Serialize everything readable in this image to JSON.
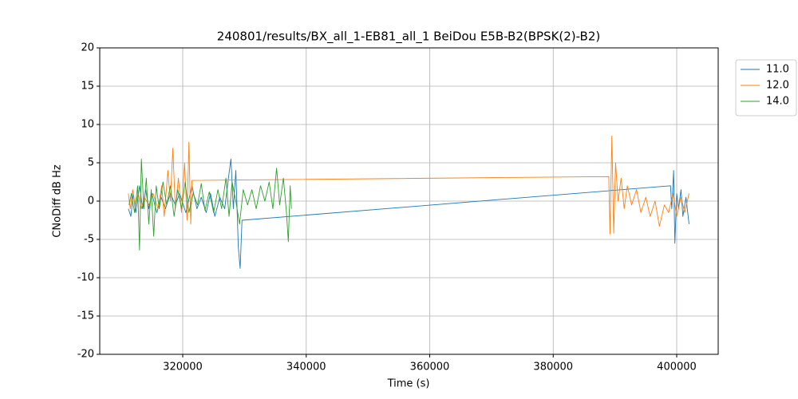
{
  "chart_data": {
    "type": "line",
    "title": "240801/results/BX_all_1-EB81_all_1 BeiDou E5B-B2(BPSK(2)-B2)",
    "x_label": "Time (s)",
    "y_label": "CNoDiff dB Hz",
    "xlim": [
      306560,
      406720
    ],
    "ylim": [
      -20,
      20
    ],
    "xticks": [
      320000,
      340000,
      360000,
      380000,
      400000
    ],
    "yticks": [
      -20,
      -15,
      -10,
      -5,
      0,
      5,
      10,
      15,
      20
    ],
    "grid": true,
    "legend": "upper right outside",
    "series": [
      {
        "name": "11.0",
        "color": "#1f77b4",
        "x": [
          311200,
          311600,
          312000,
          312400,
          313000,
          313500,
          314000,
          314500,
          315000,
          315800,
          316500,
          317200,
          318000,
          318800,
          319500,
          320500,
          321500,
          322300,
          323000,
          323800,
          324500,
          325200,
          326000,
          326800,
          327400,
          327800,
          328200,
          328600,
          329000,
          329300,
          329600,
          399000,
          399200,
          399500,
          399700,
          400000,
          400300,
          400700,
          401000,
          401500,
          402000
        ],
        "values": [
          -1,
          -2,
          1,
          -1.5,
          2,
          -1,
          1.5,
          -1,
          1,
          -1.5,
          0.5,
          -1,
          1,
          -0.5,
          1,
          -1.5,
          2,
          -1,
          0.5,
          -1.5,
          1,
          -2,
          0.5,
          -1,
          3,
          5.5,
          -1,
          4,
          -6,
          -8.8,
          -2.5,
          2,
          -1,
          4,
          -5.5,
          1,
          -1,
          1.5,
          -2,
          0.5,
          -3
        ]
      },
      {
        "name": "12.0",
        "color": "#ff7f0e",
        "x": [
          311200,
          311500,
          311900,
          312300,
          312800,
          313300,
          313800,
          314500,
          315200,
          316000,
          316600,
          317000,
          317600,
          318000,
          318400,
          318800,
          319300,
          319800,
          320300,
          320700,
          321000,
          321300,
          321500,
          389000,
          389200,
          389500,
          389800,
          390100,
          390500,
          391000,
          391500,
          392000,
          392700,
          393500,
          394200,
          395000,
          395700,
          396500,
          397200,
          398000,
          398700,
          399400,
          400000,
          400700,
          401300,
          402000
        ],
        "values": [
          1,
          -1,
          1.5,
          -0.5,
          1,
          -1,
          0.5,
          -0.5,
          1,
          -1,
          2,
          -2,
          4,
          0,
          6.9,
          -1,
          3,
          -1.5,
          5,
          -2.5,
          7.7,
          -3,
          2.7,
          3.2,
          -4.3,
          8.5,
          -4.2,
          5,
          0,
          3,
          -1,
          2,
          -0.5,
          1.5,
          -1.5,
          0.5,
          -2,
          0,
          -3.3,
          -0.5,
          -1.5,
          1,
          -2,
          0.5,
          -1.5,
          1
        ]
      },
      {
        "name": "14.0",
        "color": "#2ca02c",
        "x": [
          311300,
          311700,
          312200,
          312700,
          313000,
          313300,
          313700,
          314100,
          314500,
          314900,
          315300,
          315700,
          316200,
          316800,
          317400,
          318000,
          318600,
          319200,
          319800,
          320400,
          321000,
          321700,
          322400,
          323000,
          323600,
          324300,
          325000,
          325700,
          326300,
          327000,
          327500,
          328000,
          328600,
          329200,
          329800,
          330500,
          331200,
          331900,
          332600,
          333300,
          334000,
          334600,
          335200,
          335700,
          336300,
          336800,
          337100,
          337400,
          337600
        ],
        "values": [
          -0.5,
          1,
          -1.5,
          2,
          -6.4,
          5.5,
          -1,
          3,
          -3,
          1.5,
          -4.6,
          2,
          -1,
          2.5,
          -0.5,
          2,
          -2,
          1.5,
          -1,
          2.5,
          -1.5,
          1,
          -0.5,
          2.3,
          -1.2,
          1.2,
          -1.5,
          1.5,
          -1,
          3,
          -2,
          2.5,
          0,
          -3,
          1.5,
          -0.5,
          1.5,
          -1,
          2,
          0,
          2.5,
          -1,
          4.3,
          -0.5,
          3,
          -1.5,
          -5.3,
          2,
          -1
        ]
      }
    ]
  }
}
